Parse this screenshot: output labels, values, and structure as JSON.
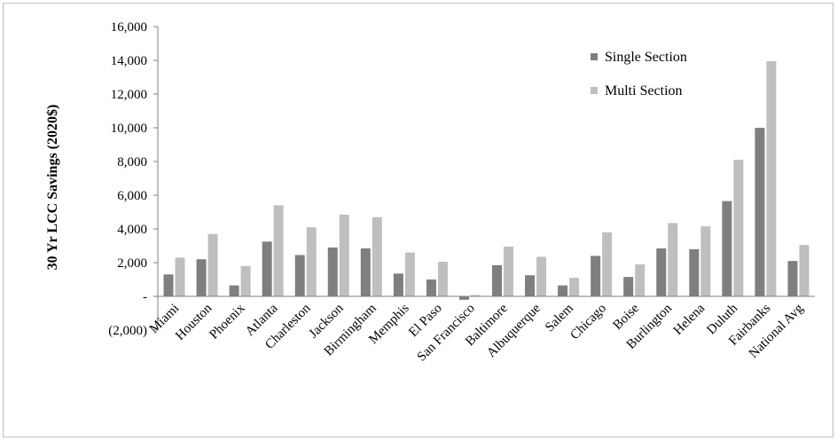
{
  "chart_data": {
    "type": "bar",
    "title": "",
    "xlabel": "",
    "ylabel": "30 Yr LCC Savings (2020$)",
    "ylim": [
      -2000,
      16000
    ],
    "yticks": [
      -2000,
      0,
      2000,
      4000,
      6000,
      8000,
      10000,
      12000,
      14000,
      16000
    ],
    "ytick_labels": [
      "(2,000)",
      "-",
      "2,000",
      "4,000",
      "6,000",
      "8,000",
      "10,000",
      "12,000",
      "14,000",
      "16,000"
    ],
    "grid": false,
    "legend_position": "top-right",
    "categories": [
      "Miami",
      "Houston",
      "Phoenix",
      "Atlanta",
      "Charleston",
      "Jackson",
      "Birmingham",
      "Memphis",
      "El Paso",
      "San Francisco",
      "Baltimore",
      "Albuquerque",
      "Salem",
      "Chicago",
      "Boise",
      "Burlington",
      "Helena",
      "Duluth",
      "Fairbanks",
      "National Avg"
    ],
    "series": [
      {
        "name": "Single Section",
        "color": "#7f7f7f",
        "values": [
          1300,
          2200,
          650,
          3250,
          2450,
          2900,
          2850,
          1350,
          1000,
          -200,
          1850,
          1250,
          650,
          2400,
          1150,
          2850,
          2800,
          5650,
          10000,
          2100
        ]
      },
      {
        "name": "Multi Section",
        "color": "#bfbfbf",
        "values": [
          2300,
          3700,
          1800,
          5400,
          4100,
          4850,
          4700,
          2600,
          2050,
          80,
          2950,
          2350,
          1100,
          3800,
          1900,
          4350,
          4150,
          8100,
          13950,
          3050
        ]
      }
    ]
  }
}
